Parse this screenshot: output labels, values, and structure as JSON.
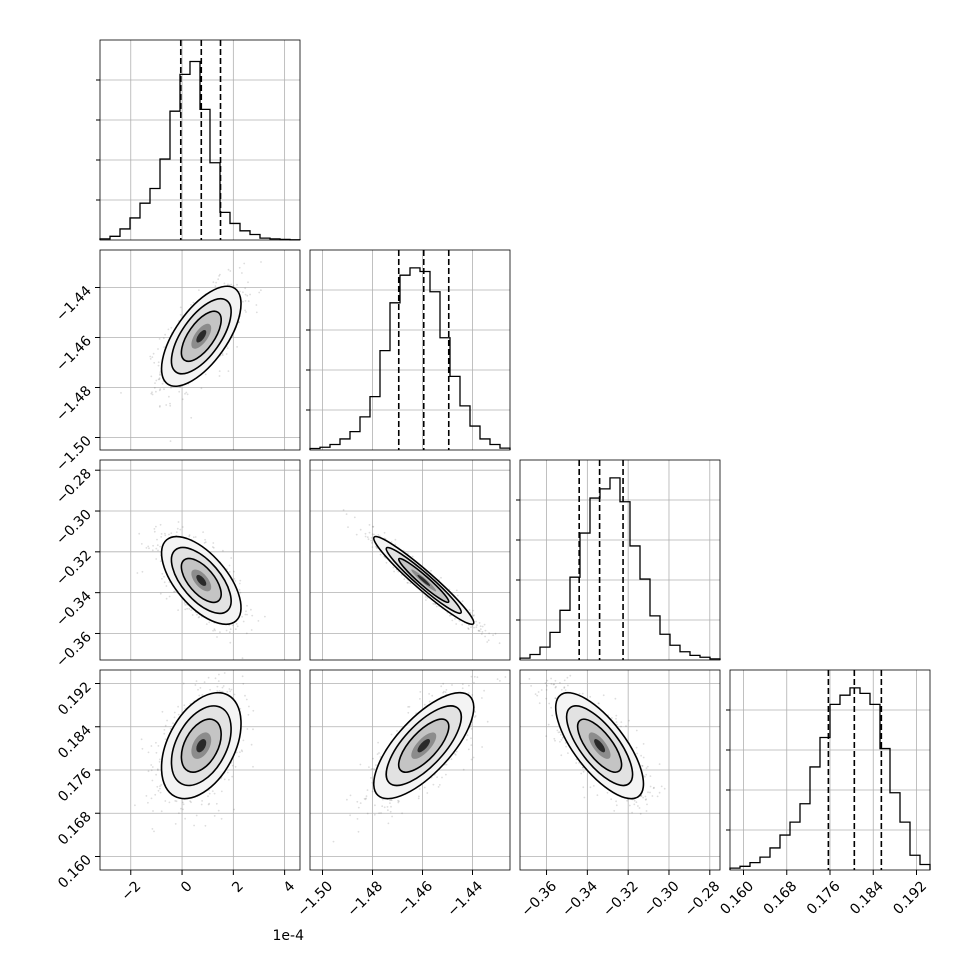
{
  "chart_data": {
    "type": "corner",
    "offset_label": "1e-4",
    "grid": true,
    "parameters": [
      {
        "range": [
          -3.2,
          4.6
        ],
        "ticks": [
          -2,
          0,
          2,
          4
        ],
        "tick_labels": [
          "−2",
          "0",
          "2",
          "4"
        ],
        "quantiles": [
          -0.05,
          0.75,
          1.5
        ]
      },
      {
        "range": [
          -1.505,
          -1.425
        ],
        "ticks": [
          -1.5,
          -1.48,
          -1.46,
          -1.44
        ],
        "tick_labels": [
          "−1.50",
          "−1.48",
          "−1.46",
          "−1.44"
        ],
        "quantiles": [
          -1.4695,
          -1.4595,
          -1.4495
        ]
      },
      {
        "range": [
          -0.373,
          -0.275
        ],
        "ticks": [
          -0.36,
          -0.34,
          -0.32,
          -0.3,
          -0.28
        ],
        "tick_labels": [
          "−0.36",
          "−0.34",
          "−0.32",
          "−0.30",
          "−0.28"
        ],
        "quantiles": [
          -0.344,
          -0.334,
          -0.3225
        ]
      },
      {
        "range": [
          0.1575,
          0.1945
        ],
        "ticks": [
          0.16,
          0.168,
          0.176,
          0.184,
          0.192
        ],
        "tick_labels": [
          "0.160",
          "0.168",
          "0.176",
          "0.184",
          "0.192"
        ],
        "quantiles": [
          0.1757,
          0.1805,
          0.1855
        ]
      }
    ],
    "histograms": [
      [
        0.006,
        0.02,
        0.06,
        0.12,
        0.2,
        0.28,
        0.44,
        0.7,
        0.9,
        0.97,
        0.71,
        0.42,
        0.15,
        0.09,
        0.05,
        0.03,
        0.01,
        0.006,
        0.003,
        0.001
      ],
      [
        0.008,
        0.015,
        0.03,
        0.06,
        0.1,
        0.18,
        0.29,
        0.54,
        0.8,
        0.95,
        0.99,
        0.97,
        0.86,
        0.61,
        0.4,
        0.24,
        0.13,
        0.06,
        0.03,
        0.01
      ],
      [
        0.01,
        0.03,
        0.07,
        0.15,
        0.27,
        0.45,
        0.69,
        0.88,
        0.93,
        0.99,
        0.86,
        0.62,
        0.44,
        0.24,
        0.14,
        0.08,
        0.045,
        0.025,
        0.015,
        0.006
      ],
      [
        0.01,
        0.02,
        0.04,
        0.07,
        0.12,
        0.19,
        0.26,
        0.36,
        0.56,
        0.72,
        0.9,
        0.95,
        0.99,
        0.96,
        0.9,
        0.66,
        0.42,
        0.26,
        0.08,
        0.03
      ]
    ],
    "correlations": {
      "1-0": 0.65,
      "2-0": -0.62,
      "2-1": -0.96,
      "3-0": 0.42,
      "3-1": 0.72,
      "3-2": -0.72
    }
  }
}
